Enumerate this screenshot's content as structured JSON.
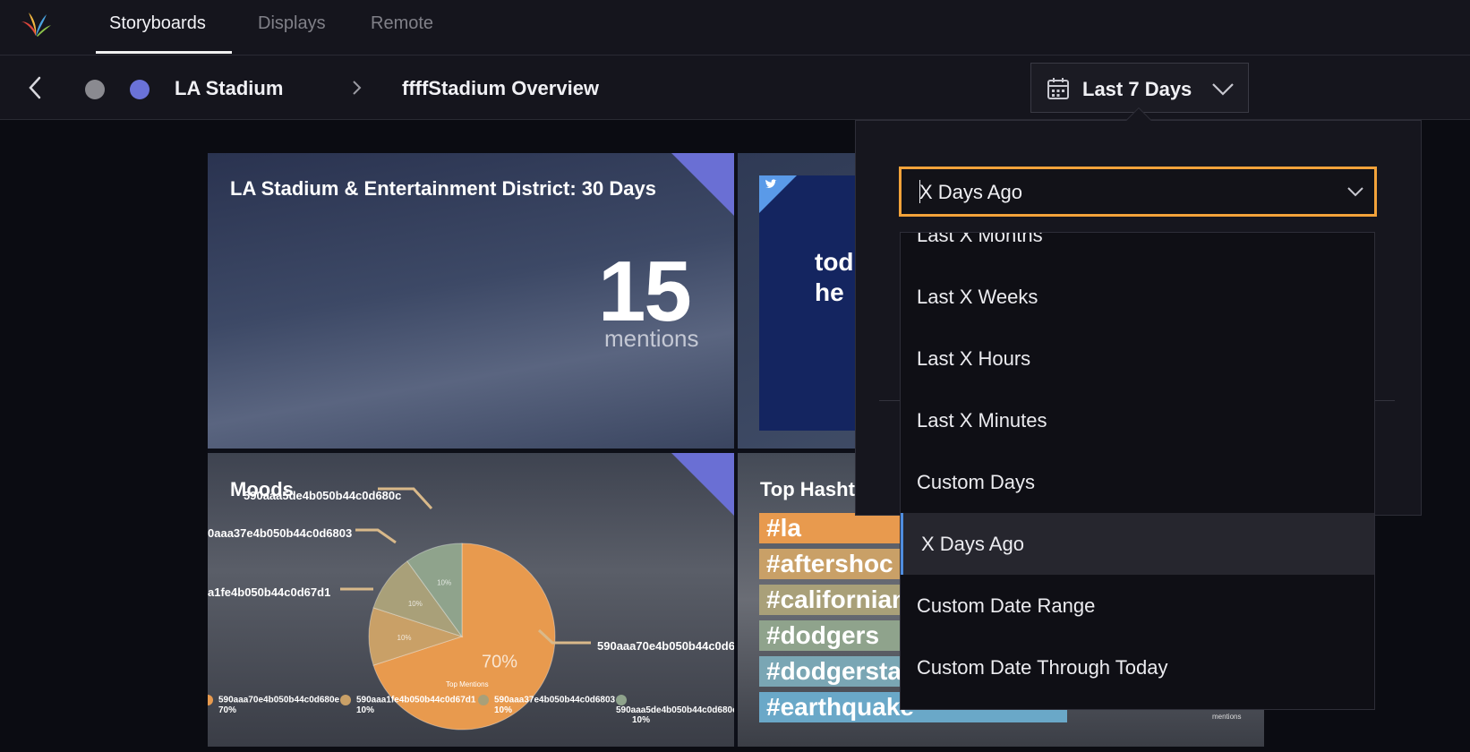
{
  "nav": {
    "logo": "app-logo",
    "tabs": [
      {
        "label": "Storyboards",
        "active": true
      },
      {
        "label": "Displays",
        "active": false
      },
      {
        "label": "Remote",
        "active": false
      }
    ]
  },
  "breadcrumb": {
    "parent": "LA Stadium",
    "current": "ffffStadium Overview"
  },
  "date_range": {
    "label": "Last 7 Days"
  },
  "tiles": {
    "count_tile": {
      "title": "LA Stadium & Entertainment District: 30 Days",
      "value": "15",
      "unit": "mentions"
    },
    "tweet_tile": {
      "text_line1": "tod",
      "text_line2": "he"
    },
    "moods_tile": {
      "title": "Moods",
      "chart_data": {
        "type": "pie",
        "categories": [
          "590aaa70e4b050b44c0d680e",
          "590aaa1fe4b050b44c0d67d1",
          "590aaa37e4b050b44c0d6803",
          "590aaa5de4b050b44c0d680c"
        ],
        "values": [
          70,
          10,
          10,
          10
        ],
        "xlabel": "Top Mentions",
        "colors": [
          "#e89a4e",
          "#c9a067",
          "#a9a079",
          "#8fa38c"
        ]
      },
      "slice_labels": [
        "70%",
        "10%",
        "10%",
        "10%"
      ],
      "callouts": [
        "590aaa5de4b050b44c0d680c",
        "0aaa37e4b050b44c0d6803",
        "a1fe4b050b44c0d67d1",
        "590aaa70e4b050b44c0d6"
      ],
      "legend": [
        {
          "name": "590aaa70e4b050b44c0d680e",
          "pct": "70%"
        },
        {
          "name": "590aaa1fe4b050b44c0d67d1",
          "pct": "10%"
        },
        {
          "name": "590aaa37e4b050b44c0d6803",
          "pct": "10%"
        },
        {
          "name": "590aaa5de4b050b44c0d680c",
          "pct": "10%"
        }
      ]
    },
    "hashtags_tile": {
      "title": "Top Hasht",
      "tags": [
        {
          "text": "#la",
          "color": "#e89a4e"
        },
        {
          "text": "#aftershoc",
          "color": "#c9a067"
        },
        {
          "text": "#californian",
          "color": "#a9a079"
        },
        {
          "text": "#dodgers",
          "color": "#8fa38c"
        },
        {
          "text": "#dodgersta",
          "color": "#7aa6b4"
        },
        {
          "text": "#earthquake",
          "color": "#6aa8c8"
        }
      ],
      "footer": "mentions"
    }
  },
  "date_popover": {
    "selected": "X Days Ago",
    "options": [
      "Last X Months",
      "Last X Weeks",
      "Last X Hours",
      "Last X Minutes",
      "Custom Days",
      "X Days Ago",
      "Custom Date Range",
      "Custom Date Through Today"
    ]
  }
}
